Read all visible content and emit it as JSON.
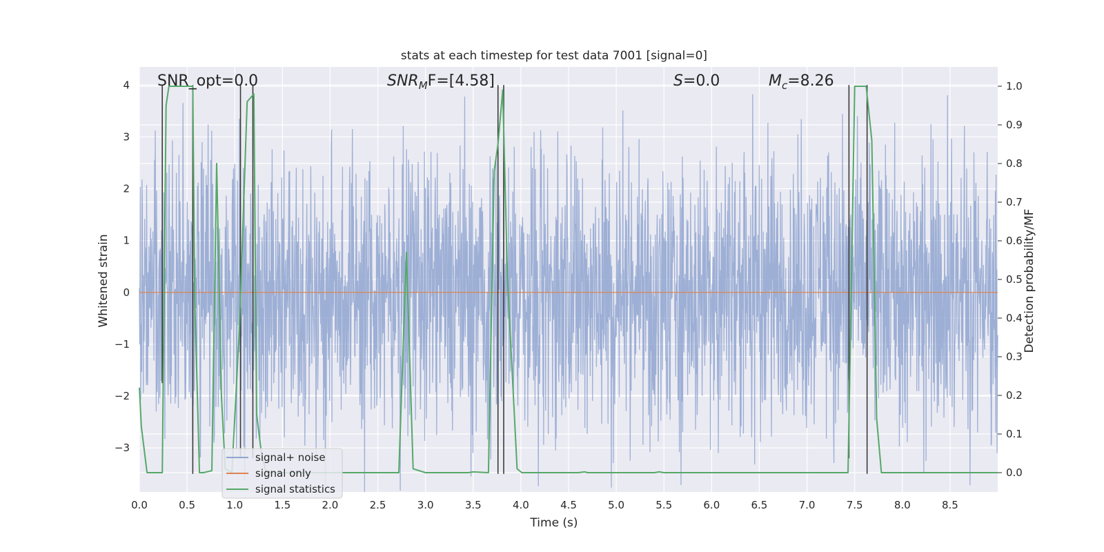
{
  "colors": {
    "background": "#eaeaf2",
    "grid": "#ffffff",
    "noise": "#8fa5d0",
    "signal_only": "#dd8452",
    "statistics": "#55a868",
    "vline": "#3a3a3a"
  },
  "chart_data": {
    "type": "line",
    "title": "stats at each timestep for test data 7001 [signal=0]",
    "xlabel": "Time (s)",
    "ylabel_left": "Whitened strain",
    "ylabel_right": "Detection probability/MF",
    "xlim": [
      0.0,
      9.0
    ],
    "ylim_left": [
      -3.85,
      4.35
    ],
    "ylim_right": [
      -0.05,
      1.05
    ],
    "grid": true,
    "legend_location": "lower left",
    "xticks": [
      0.0,
      0.5,
      1.0,
      1.5,
      2.0,
      2.5,
      3.0,
      3.5,
      4.0,
      4.5,
      5.0,
      5.5,
      6.0,
      6.5,
      7.0,
      7.5,
      8.0,
      8.5
    ],
    "xtick_labels": [
      "0.0",
      "0.5",
      "1.0",
      "1.5",
      "2.0",
      "2.5",
      "3.0",
      "3.5",
      "4.0",
      "4.5",
      "5.0",
      "5.5",
      "6.0",
      "6.5",
      "7.0",
      "7.5",
      "8.0",
      "8.5"
    ],
    "yticks_left": [
      -3,
      -2,
      -1,
      0,
      1,
      2,
      3,
      4
    ],
    "ytick_labels_left": [
      "−3",
      "−2",
      "−1",
      "0",
      "1",
      "2",
      "3",
      "4"
    ],
    "yticks_right": [
      0.0,
      0.1,
      0.2,
      0.3,
      0.4,
      0.5,
      0.6,
      0.7,
      0.8,
      0.9,
      1.0
    ],
    "ytick_labels_right": [
      "0.0",
      "0.1",
      "0.2",
      "0.3",
      "0.4",
      "0.5",
      "0.6",
      "0.7",
      "0.8",
      "0.9",
      "1.0"
    ],
    "annotations": {
      "snr_opt": "SNR_opt=0.0",
      "snr_mf_symbol": "SNR",
      "snr_mf_sub": "M",
      "snr_mf_rest": "F=[4.58]",
      "s_symbol": "S",
      "s_rest": "=0.0",
      "mc_symbol": "M",
      "mc_sub": "c",
      "mc_rest": "=8.26"
    },
    "series": [
      {
        "name": "signal+ noise",
        "axis": "left",
        "style": "dense noise, approx. band -2.0 to 2.0 with spikes to about ±3.9"
      },
      {
        "name": "signal only",
        "axis": "left",
        "x": [
          0.0,
          9.0
        ],
        "y": [
          0.0,
          0.0
        ]
      },
      {
        "name": "signal statistics",
        "axis": "right",
        "x": [
          0.0,
          0.02,
          0.08,
          0.2,
          0.24,
          0.28,
          0.31,
          0.56,
          0.58,
          0.63,
          0.67,
          0.76,
          0.81,
          0.86,
          0.9,
          0.97,
          1.05,
          1.13,
          1.2,
          1.23,
          1.28,
          1.33,
          2.5,
          2.72,
          2.8,
          2.87,
          3.0,
          3.45,
          3.5,
          3.66,
          3.72,
          3.76,
          3.81,
          3.86,
          3.96,
          4.01,
          4.6,
          4.67,
          4.7,
          5.4,
          5.45,
          5.5,
          7.43,
          7.46,
          7.5,
          7.62,
          7.68,
          7.73,
          7.78,
          9.0
        ],
        "y": [
          0.22,
          0.12,
          0.0,
          0.0,
          0.0,
          0.95,
          1.0,
          1.0,
          0.45,
          0.0,
          0.0,
          0.005,
          0.8,
          0.2,
          0.01,
          0.0,
          0.38,
          0.96,
          0.98,
          0.15,
          0.05,
          0.0,
          0.0,
          0.0,
          0.57,
          0.01,
          0.0,
          0.0,
          0.002,
          0.0,
          0.78,
          0.85,
          0.99,
          0.5,
          0.01,
          0.0,
          0.0,
          0.002,
          0.0,
          0.0,
          0.002,
          0.0,
          0.0,
          0.4,
          1.0,
          1.0,
          0.86,
          0.14,
          0.0,
          0.0
        ]
      }
    ],
    "vertical_markers": {
      "axis": "left",
      "lines": [
        {
          "x": 0.24,
          "y0": -1.75,
          "y1": 4.0
        },
        {
          "x": 0.56,
          "y0": -3.5,
          "y1": 4.0
        },
        {
          "x": 1.06,
          "y0": -3.2,
          "y1": 4.0
        },
        {
          "x": 1.19,
          "y0": -3.2,
          "y1": 4.0
        },
        {
          "x": 3.76,
          "y0": -3.5,
          "y1": 4.0
        },
        {
          "x": 3.82,
          "y0": -3.5,
          "y1": 4.0
        },
        {
          "x": 7.44,
          "y0": -3.2,
          "y1": 4.0
        },
        {
          "x": 7.63,
          "y0": -3.5,
          "y1": 4.0
        }
      ]
    },
    "legend": [
      "signal+ noise",
      "signal only",
      "signal statistics"
    ]
  }
}
